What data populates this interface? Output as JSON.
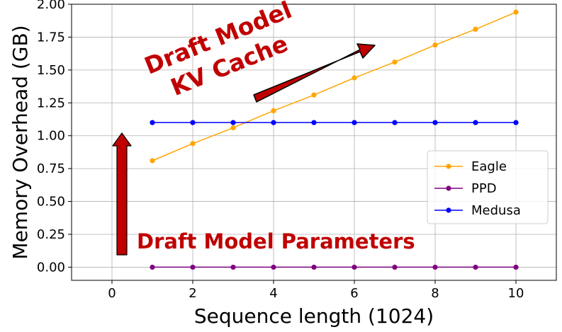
{
  "chart_data": {
    "type": "line",
    "xlabel": "Sequence length (1024)",
    "ylabel": "Memory Overhead (GB)",
    "xlim": [
      -1,
      11
    ],
    "ylim": [
      -0.1,
      2.0
    ],
    "xticks": [
      "0",
      "2",
      "4",
      "6",
      "8",
      "10"
    ],
    "yticks": [
      "0.00",
      "0.25",
      "0.50",
      "0.75",
      "1.00",
      "1.25",
      "1.50",
      "1.75",
      "2.00"
    ],
    "grid": true,
    "legend_position": "center-right",
    "x": [
      1,
      2,
      3,
      4,
      5,
      6,
      7,
      8,
      9,
      10
    ],
    "series": [
      {
        "name": "Eagle",
        "color": "#ffa500",
        "values": [
          0.81,
          0.94,
          1.06,
          1.19,
          1.31,
          1.44,
          1.56,
          1.69,
          1.81,
          1.94
        ]
      },
      {
        "name": "PPD",
        "color": "#800080",
        "values": [
          0,
          0,
          0,
          0,
          0,
          0,
          0,
          0,
          0,
          0
        ]
      },
      {
        "name": "Medusa",
        "color": "#0000ff",
        "values": [
          1.1,
          1.1,
          1.1,
          1.1,
          1.1,
          1.1,
          1.1,
          1.1,
          1.1,
          1.1
        ]
      }
    ],
    "annotations": [
      {
        "text_lines": [
          "Draft Model",
          "KV Cache"
        ],
        "color": "#c00000"
      },
      {
        "text_lines": [
          "Draft Model Parameters"
        ],
        "color": "#c00000"
      }
    ]
  }
}
